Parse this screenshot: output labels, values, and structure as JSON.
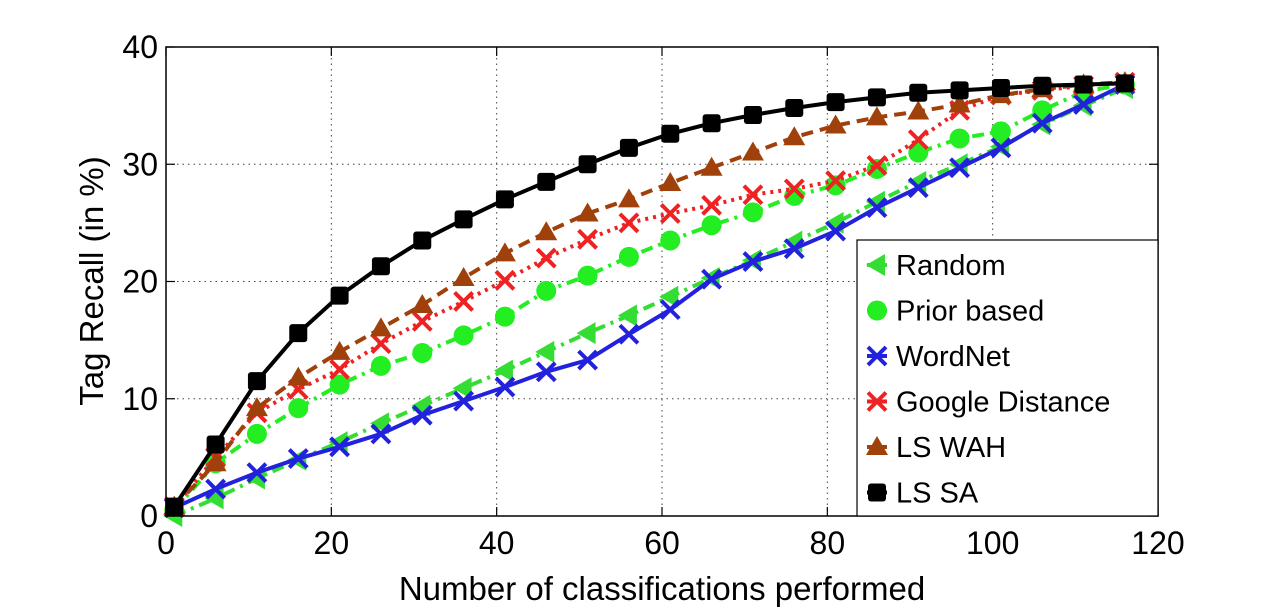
{
  "chart_data": {
    "type": "line",
    "xlabel": "Number of classifications performed",
    "ylabel": "Tag Recall (in %)",
    "xlim": [
      0,
      120
    ],
    "ylim": [
      0,
      40
    ],
    "xticks": [
      "0",
      "20",
      "40",
      "60",
      "80",
      "100",
      "120"
    ],
    "yticks": [
      "0",
      "10",
      "20",
      "30",
      "40"
    ],
    "grid": true,
    "legend_position": "right",
    "x": [
      1,
      6,
      11,
      16,
      21,
      26,
      31,
      36,
      41,
      46,
      51,
      56,
      61,
      66,
      71,
      76,
      81,
      86,
      91,
      96,
      101,
      106,
      111,
      116
    ],
    "series": [
      {
        "name": "Random",
        "color": "#33dd33",
        "marker": "triangle-left",
        "dash": "dash-dot",
        "values": [
          0.0,
          1.5,
          3.2,
          4.8,
          6.3,
          7.9,
          9.4,
          10.9,
          12.4,
          14.0,
          15.6,
          17.1,
          18.7,
          20.3,
          21.8,
          23.4,
          25.0,
          26.8,
          28.5,
          30.0,
          31.5,
          33.4,
          35.0,
          36.5
        ]
      },
      {
        "name": "Prior based",
        "color": "#22ee22",
        "marker": "circle",
        "dash": "dash-dot",
        "values": [
          0.5,
          4.5,
          7.0,
          9.2,
          11.2,
          12.8,
          13.9,
          15.4,
          17.0,
          19.2,
          20.5,
          22.1,
          23.5,
          24.8,
          25.9,
          27.3,
          28.2,
          29.6,
          31.0,
          32.2,
          32.8,
          34.6,
          36.2,
          36.8
        ]
      },
      {
        "name": "WordNet",
        "color": "#2222dd",
        "marker": "x",
        "dash": "solid",
        "values": [
          0.7,
          2.3,
          3.7,
          4.9,
          5.9,
          7.0,
          8.6,
          9.8,
          11.0,
          12.3,
          13.3,
          15.5,
          17.6,
          20.2,
          21.7,
          22.8,
          24.3,
          26.3,
          28.0,
          29.7,
          31.4,
          33.5,
          35.1,
          36.8
        ]
      },
      {
        "name": "Google Distance",
        "color": "#ee2222",
        "marker": "x",
        "dash": "dotted",
        "values": [
          0.8,
          5.0,
          8.8,
          10.8,
          12.5,
          14.7,
          16.6,
          18.3,
          20.1,
          22.0,
          23.6,
          25.0,
          25.8,
          26.5,
          27.4,
          27.9,
          28.6,
          29.9,
          32.1,
          34.6,
          35.9,
          36.3,
          36.7,
          37.0
        ]
      },
      {
        "name": "LS WAH",
        "color": "#a0400a",
        "marker": "triangle-up",
        "dash": "dashed",
        "values": [
          0.8,
          4.5,
          9.2,
          11.8,
          14.0,
          16.0,
          18.0,
          20.3,
          22.4,
          24.2,
          25.8,
          27.0,
          28.4,
          29.7,
          31.0,
          32.3,
          33.3,
          34.0,
          34.5,
          35.1,
          35.9,
          36.4,
          36.8,
          37.0
        ]
      },
      {
        "name": "LS SA",
        "color": "#000000",
        "marker": "square",
        "dash": "solid",
        "values": [
          0.8,
          6.1,
          11.5,
          15.6,
          18.8,
          21.3,
          23.5,
          25.3,
          27.0,
          28.5,
          30.0,
          31.4,
          32.6,
          33.5,
          34.2,
          34.8,
          35.3,
          35.7,
          36.1,
          36.3,
          36.5,
          36.7,
          36.8,
          36.9
        ]
      }
    ]
  }
}
